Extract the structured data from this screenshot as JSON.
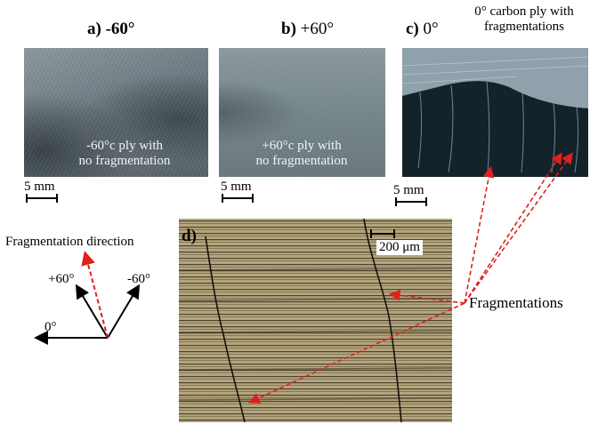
{
  "panels": {
    "a": {
      "letter": "a)",
      "angle": "-60°",
      "caption_line1": "-60°c ply with",
      "caption_line2": "no fragmentation",
      "scale": "5 mm"
    },
    "b": {
      "letter": "b)",
      "angle": "+60°",
      "caption_line1": "+60°c ply with",
      "caption_line2": "no fragmentation",
      "scale": "5 mm"
    },
    "c": {
      "letter": "c)",
      "angle": "0°",
      "caption_line1": "0° carbon ply with",
      "caption_line2": "fragmentations",
      "scale": "5 mm"
    },
    "d": {
      "letter": "d)",
      "scale": "200 μm"
    }
  },
  "diagram": {
    "fragmentation_direction": "Fragmentation direction",
    "plus60": "+60°",
    "minus60": "-60°",
    "zero": "0°"
  },
  "callout": {
    "fragmentations": "Fragmentations"
  },
  "colors": {
    "arrow_red": "#e0201c",
    "micro_bg": "#a09068"
  }
}
